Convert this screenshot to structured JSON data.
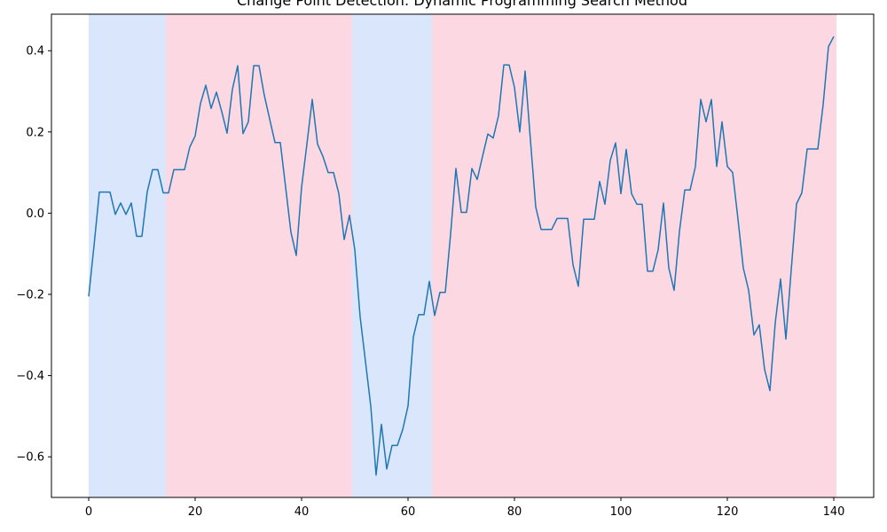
{
  "chart_data": {
    "type": "line",
    "title": "Change Point Detection: Dynamic Programming Search Method",
    "xlabel": "",
    "ylabel": "",
    "xlim": [
      -7,
      147.5
    ],
    "ylim": [
      -0.7,
      0.49
    ],
    "x_ticks": [
      0,
      20,
      40,
      60,
      80,
      100,
      120,
      140
    ],
    "y_ticks": [
      -0.6,
      -0.4,
      -0.2,
      0.0,
      0.2,
      0.4
    ],
    "y_tick_labels": [
      "−0.6",
      "−0.4",
      "−0.2",
      "0.0",
      "0.2",
      "0.4"
    ],
    "grid": false,
    "line_color": "#1f77b4",
    "segments": [
      {
        "start": 0,
        "end": 14.5,
        "color": "#dae6fc"
      },
      {
        "start": 14.5,
        "end": 49.5,
        "color": "#fcd8e3"
      },
      {
        "start": 49.5,
        "end": 64.5,
        "color": "#dae6fc"
      },
      {
        "start": 64.5,
        "end": 140.5,
        "color": "#fcd8e3"
      }
    ],
    "series": [
      {
        "values": [
          -0.205,
          -0.08,
          0.052,
          0.052,
          0.052,
          -0.003,
          0.025,
          -0.003,
          0.025,
          -0.057,
          -0.057,
          0.053,
          0.107,
          0.107,
          0.05,
          0.05,
          0.107,
          0.107,
          0.107,
          0.163,
          0.19,
          0.27,
          0.315,
          0.258,
          0.298,
          0.25,
          0.197,
          0.305,
          0.363,
          0.196,
          0.225,
          0.363,
          0.363,
          0.29,
          0.232,
          0.174,
          0.174,
          0.064,
          -0.047,
          -0.104,
          0.064,
          0.17,
          0.28,
          0.17,
          0.14,
          0.1,
          0.1,
          0.048,
          -0.065,
          -0.005,
          -0.09,
          -0.255,
          -0.365,
          -0.475,
          -0.645,
          -0.52,
          -0.63,
          -0.572,
          -0.572,
          -0.533,
          -0.475,
          -0.305,
          -0.25,
          -0.25,
          -0.168,
          -0.252,
          -0.195,
          -0.195,
          -0.052,
          0.11,
          0.002,
          0.002,
          0.11,
          0.083,
          0.14,
          0.195,
          0.185,
          0.24,
          0.365,
          0.365,
          0.31,
          0.2,
          0.35,
          0.18,
          0.015,
          -0.04,
          -0.04,
          -0.04,
          -0.013,
          -0.013,
          -0.013,
          -0.127,
          -0.18,
          -0.015,
          -0.015,
          -0.015,
          0.078,
          0.022,
          0.13,
          0.173,
          0.048,
          0.157,
          0.048,
          0.022,
          0.022,
          -0.143,
          -0.143,
          -0.09,
          0.025,
          -0.135,
          -0.19,
          -0.045,
          0.057,
          0.057,
          0.115,
          0.28,
          0.225,
          0.28,
          0.115,
          0.225,
          0.115,
          0.1,
          -0.015,
          -0.135,
          -0.19,
          -0.3,
          -0.275,
          -0.385,
          -0.437,
          -0.27,
          -0.162,
          -0.31,
          -0.14,
          0.023,
          0.05,
          0.158,
          0.158,
          0.158,
          0.267,
          0.41,
          0.435
        ]
      }
    ]
  }
}
